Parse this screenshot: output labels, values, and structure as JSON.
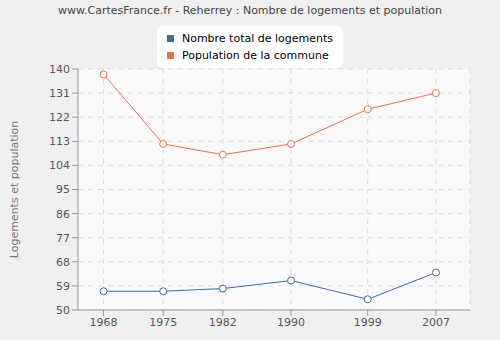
{
  "chart_data": {
    "type": "line",
    "title": "www.CartesFrance.fr - Reherrey : Nombre de logements et population",
    "x": [
      1968,
      1975,
      1982,
      1990,
      1999,
      2007
    ],
    "series": [
      {
        "name": "Nombre total de logements",
        "color": "#3e6d9c",
        "values": [
          57,
          57,
          58,
          61,
          54,
          64
        ],
        "marker": "circle"
      },
      {
        "name": "Population de la commune",
        "color": "#e8724a",
        "values": [
          138,
          112,
          108,
          112,
          125,
          131
        ],
        "marker": "circle"
      }
    ],
    "y_label": "Logements et population",
    "xlim": [
      1965,
      2011
    ],
    "xticks": [
      1968,
      1975,
      1982,
      1990,
      1999,
      2007
    ],
    "ylim": [
      50,
      140
    ],
    "yticks": [
      50,
      59,
      68,
      77,
      86,
      95,
      104,
      113,
      122,
      131,
      140
    ],
    "grid": true,
    "legend": "top"
  }
}
